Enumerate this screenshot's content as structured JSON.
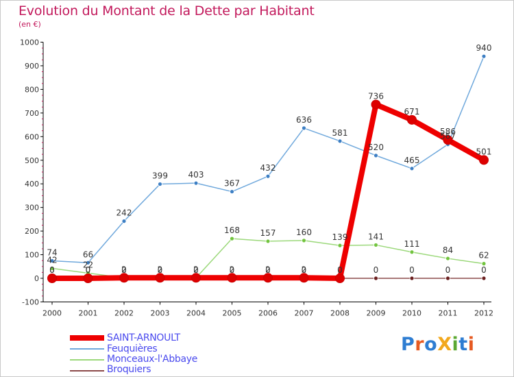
{
  "title": "Evolution du Montant de la Dette par Habitant",
  "subtitle": "(en €)",
  "logo": {
    "text": "ProXiti",
    "letters": [
      {
        "ch": "P",
        "color": "#2e7dd2"
      },
      {
        "ch": "r",
        "color": "#e65a22"
      },
      {
        "ch": "o",
        "color": "#2e7dd2"
      },
      {
        "ch": "X",
        "color": "#f2a81d"
      },
      {
        "ch": "i",
        "color": "#5aa832"
      },
      {
        "ch": "t",
        "color": "#2e7dd2"
      },
      {
        "ch": "i",
        "color": "#e65a22"
      }
    ]
  },
  "chart_data": {
    "type": "line",
    "title": "Evolution du Montant de la Dette par Habitant",
    "subtitle": "(en €)",
    "x": [
      "2000",
      "2001",
      "2002",
      "2003",
      "2004",
      "2005",
      "2006",
      "2007",
      "2008",
      "2009",
      "2010",
      "2011",
      "2012"
    ],
    "ylim": [
      -100,
      1000
    ],
    "yticks": [
      -100,
      0,
      100,
      200,
      300,
      400,
      500,
      600,
      700,
      800,
      900,
      1000
    ],
    "grid": false,
    "legend": "bottom-left",
    "series": [
      {
        "name": "Feuquières",
        "color": "#6fa8dc",
        "marker": "#3d7fc4",
        "values": [
          74,
          66,
          242,
          399,
          403,
          367,
          432,
          636,
          581,
          520,
          465,
          567,
          940
        ],
        "labels": [
          "74",
          "66",
          "242",
          "399",
          "403",
          "367",
          "432",
          "636",
          "581",
          "520",
          "465",
          "567",
          "940"
        ]
      },
      {
        "name": "Monceaux-l'Abbaye",
        "color": "#9bd87a",
        "marker": "#72c43e",
        "values": [
          42,
          22,
          2,
          2,
          2,
          168,
          157,
          160,
          139,
          141,
          111,
          84,
          62
        ],
        "labels": [
          "42",
          "22",
          "2",
          "2",
          "2",
          "168",
          "157",
          "160",
          "139",
          "141",
          "111",
          "84",
          "62"
        ]
      },
      {
        "name": "Broquiers",
        "color": "#8b4a4a",
        "marker": "#6b1f1f",
        "values": [
          0,
          0,
          0,
          0,
          0,
          0,
          0,
          0,
          0,
          0,
          0,
          0,
          0
        ],
        "labels": [
          "0",
          "0",
          "0",
          "0",
          "0",
          "0",
          "0",
          "0",
          "0",
          "0",
          "0",
          "0",
          "0"
        ]
      },
      {
        "name": "SAINT-ARNOULT",
        "color": "#ee0000",
        "marker": "#dd0000",
        "values": [
          0,
          0,
          2,
          2,
          2,
          2,
          2,
          2,
          0,
          736,
          671,
          586,
          501
        ],
        "labels": [
          "0",
          "0",
          "2",
          "2",
          "2",
          "2",
          "2",
          "2",
          "0",
          "736",
          "671",
          "586",
          "501"
        ]
      }
    ],
    "legend_order": [
      "SAINT-ARNOULT",
      "Feuquières",
      "Monceaux-l'Abbaye",
      "Broquiers"
    ]
  }
}
